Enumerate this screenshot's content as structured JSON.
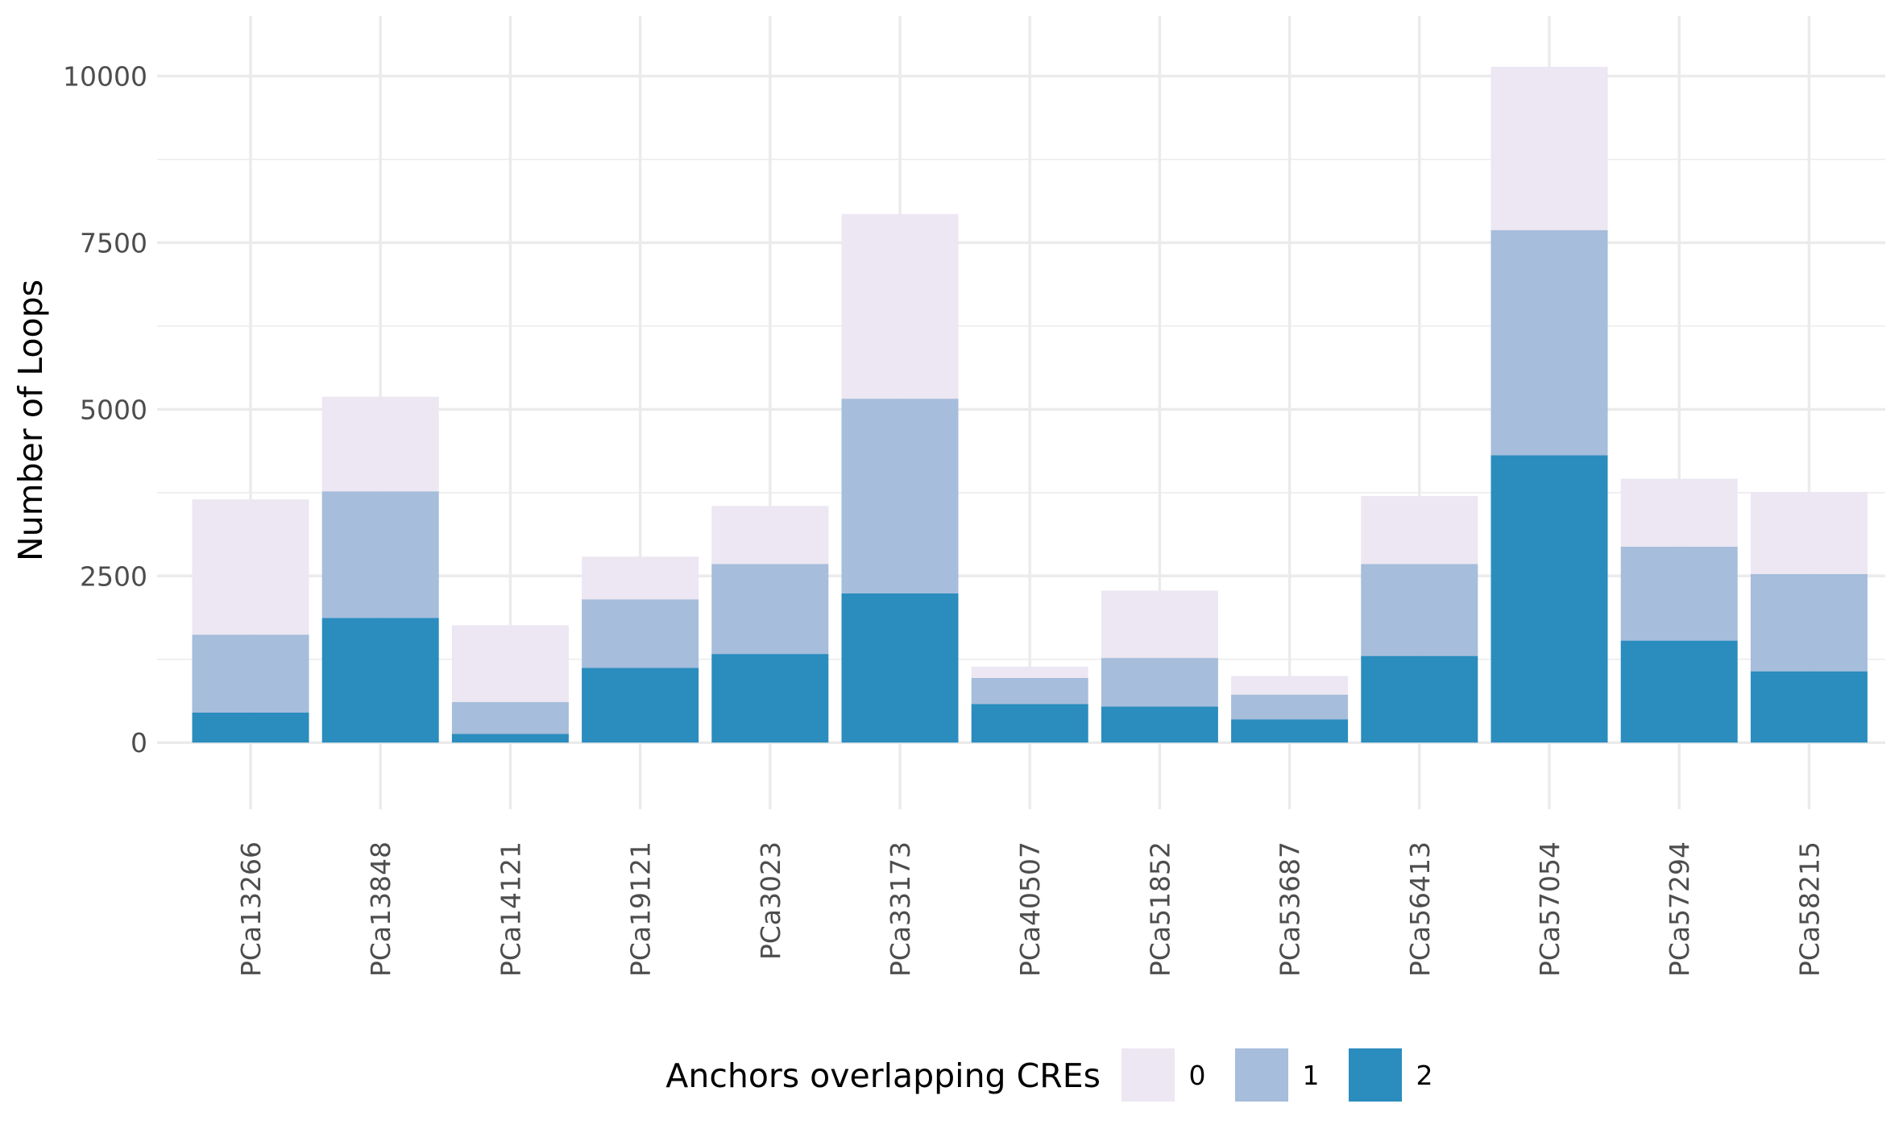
{
  "chart_data": {
    "type": "bar",
    "stacked": true,
    "ylabel": "Number of Loops",
    "xlabel": "",
    "ylim": [
      -1000,
      10900
    ],
    "y_ticks": [
      0,
      2500,
      5000,
      7500,
      10000
    ],
    "y_tick_labels": [
      "0",
      "2500",
      "5000",
      "7500",
      "10000"
    ],
    "grid": true,
    "legend": {
      "title": "Anchors overlapping CREs",
      "placement": "bottom"
    },
    "categories": [
      "PCa13266",
      "PCa13848",
      "PCa14121",
      "PCa19121",
      "PCa3023",
      "PCa33173",
      "PCa40507",
      "PCa51852",
      "PCa53687",
      "PCa56413",
      "PCa57054",
      "PCa57294",
      "PCa58215"
    ],
    "series": [
      {
        "name": "2",
        "color": "#2b8cbe",
        "values": [
          450,
          1870,
          130,
          1120,
          1330,
          2240,
          580,
          540,
          350,
          1300,
          4310,
          1530,
          1070
        ]
      },
      {
        "name": "1",
        "color": "#a6bddb",
        "values": [
          1170,
          1900,
          480,
          1030,
          1350,
          2920,
          390,
          730,
          370,
          1380,
          3380,
          1410,
          1460
        ]
      },
      {
        "name": "0",
        "color": "#ece7f2",
        "values": [
          2030,
          1420,
          1150,
          640,
          870,
          2770,
          170,
          1010,
          280,
          1020,
          2450,
          1020,
          1230
        ]
      }
    ]
  }
}
